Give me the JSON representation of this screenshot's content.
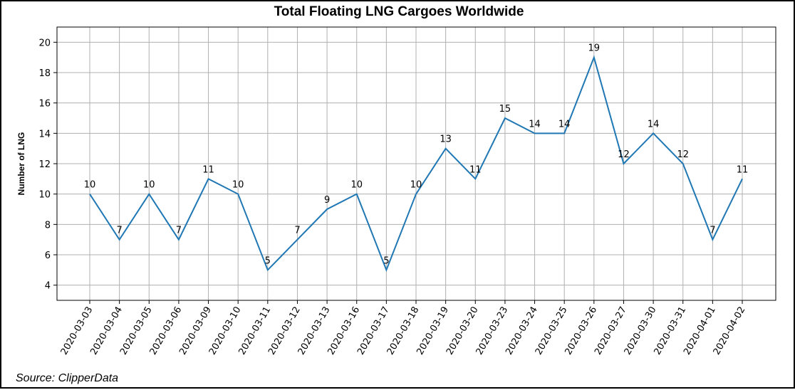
{
  "chart_data": {
    "type": "line",
    "title": "Total Floating LNG Cargoes Worldwide",
    "xlabel": "",
    "ylabel": "Number of LNG",
    "source": "Source: ClipperData",
    "categories": [
      "2020-03-03",
      "2020-03-04",
      "2020-03-05",
      "2020-03-06",
      "2020-03-09",
      "2020-03-10",
      "2020-03-11",
      "2020-03-12",
      "2020-03-13",
      "2020-03-16",
      "2020-03-17",
      "2020-03-18",
      "2020-03-19",
      "2020-03-20",
      "2020-03-23",
      "2020-03-24",
      "2020-03-25",
      "2020-03-26",
      "2020-03-27",
      "2020-03-30",
      "2020-03-31",
      "2020-04-01",
      "2020-04-02"
    ],
    "series": [
      {
        "values": [
          10,
          7,
          10,
          7,
          11,
          10,
          5,
          7,
          9,
          10,
          5,
          10,
          13,
          11,
          15,
          14,
          14,
          19,
          12,
          14,
          12,
          7,
          11
        ],
        "color": "#1f77b4"
      }
    ],
    "ylim": [
      3,
      21
    ],
    "yticks": [
      4,
      6,
      8,
      10,
      12,
      14,
      16,
      18,
      20
    ],
    "grid": true,
    "data_labels": true
  }
}
